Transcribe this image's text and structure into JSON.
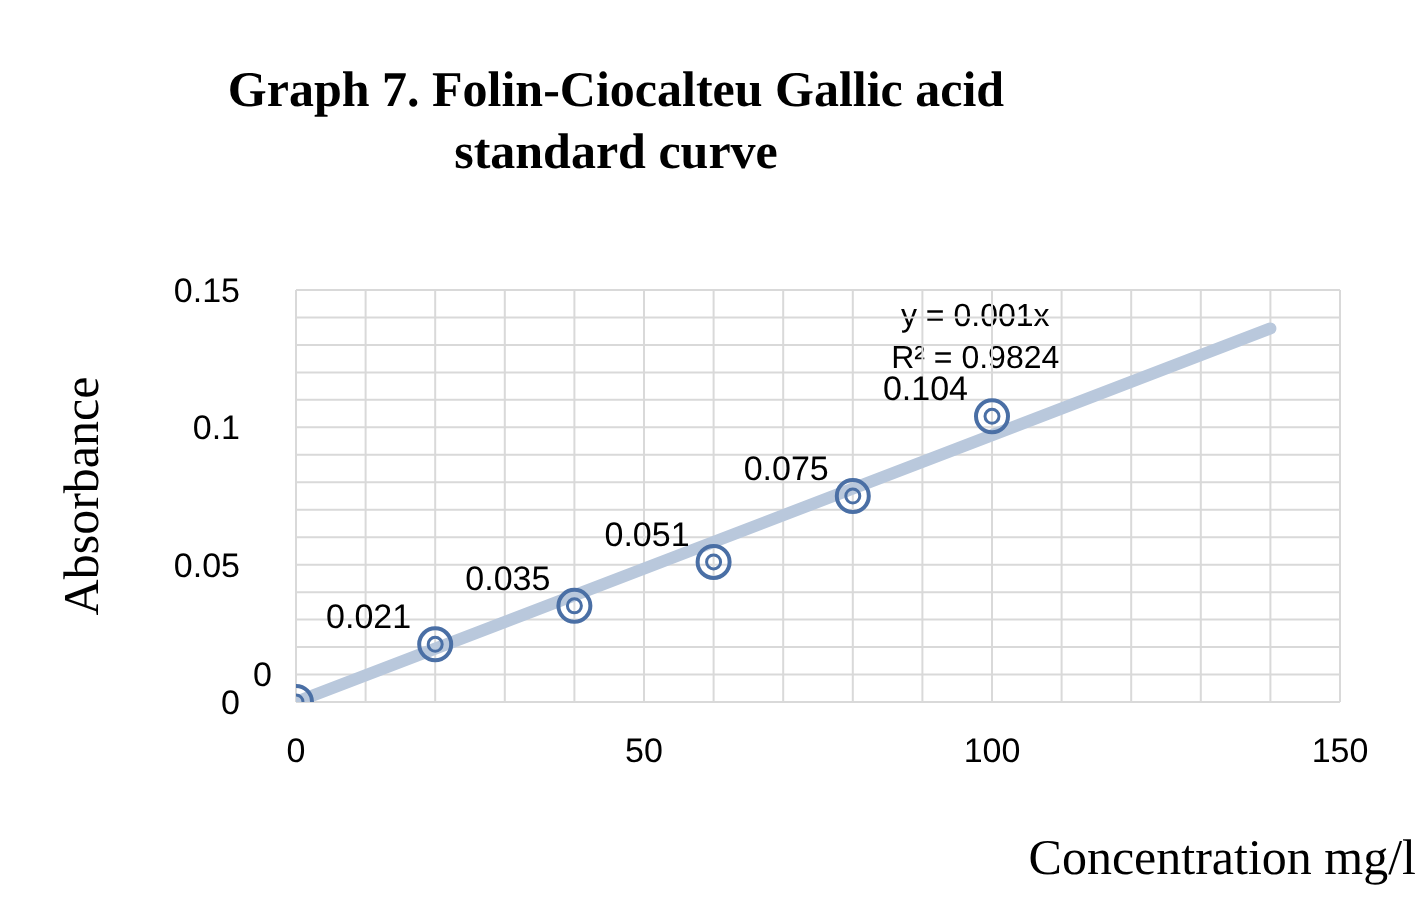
{
  "chart_data": {
    "type": "scatter",
    "title": "Graph 7. Folin-Ciocalteu Gallic acid standard curve",
    "xlabel": "Concentration mg/l",
    "ylabel": "Absorbance",
    "x": [
      0,
      20,
      40,
      60,
      80,
      100
    ],
    "series": [
      {
        "color": "#4a6fa5",
        "values": [
          0,
          0.021,
          0.035,
          0.051,
          0.075,
          0.104
        ],
        "value_labels": [
          "0",
          "0.021",
          "0.035",
          "0.051",
          "0.075",
          "0.104"
        ]
      },
      {
        "type": "line",
        "color": "#b9c8dc",
        "x": [
          0,
          140
        ],
        "values": [
          0,
          0.136
        ]
      }
    ],
    "annotations": [
      "y = 0.001x",
      "R² = 0.9824"
    ],
    "xlim": [
      0,
      150
    ],
    "xticks": [
      0,
      {
        "value": 10,
        "label": null
      },
      {
        "value": 20,
        "label": null
      },
      {
        "value": 30,
        "label": null
      },
      {
        "value": 40,
        "label": null
      },
      50,
      {
        "value": 60,
        "label": null
      },
      {
        "value": 70,
        "label": null
      },
      {
        "value": 80,
        "label": null
      },
      {
        "value": 90,
        "label": null
      },
      100,
      {
        "value": 110,
        "label": null
      },
      {
        "value": 120,
        "label": null
      },
      {
        "value": 130,
        "label": null
      },
      {
        "value": 140,
        "label": null
      },
      150
    ],
    "ylim": [
      0,
      0.15
    ],
    "yticks": [
      0,
      {
        "value": 0.01,
        "label": null
      },
      {
        "value": 0.02,
        "label": null
      },
      {
        "value": 0.03,
        "label": null
      },
      {
        "value": 0.04,
        "label": null
      },
      0.05,
      {
        "value": 0.06,
        "label": null
      },
      {
        "value": 0.07,
        "label": null
      },
      {
        "value": 0.08,
        "label": null
      },
      {
        "value": 0.09,
        "label": null
      },
      0.1,
      {
        "value": 0.11,
        "label": null
      },
      {
        "value": 0.12,
        "label": null
      },
      {
        "value": 0.13,
        "label": null
      },
      {
        "value": 0.14,
        "label": null
      },
      0.15
    ],
    "grid": true,
    "marker": "circle"
  }
}
